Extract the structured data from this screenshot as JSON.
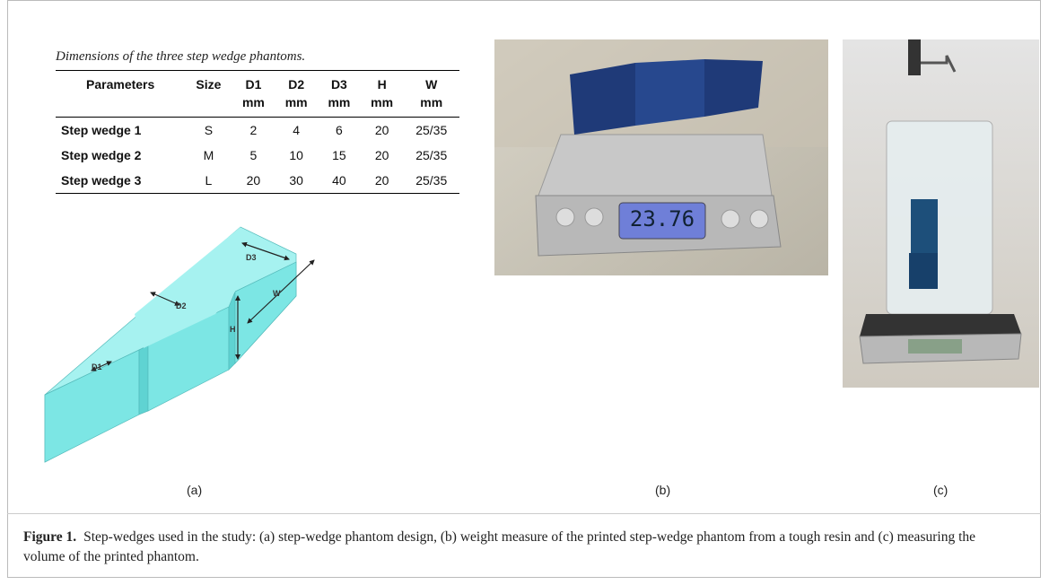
{
  "table": {
    "caption": "Dimensions of the three step wedge phantoms.",
    "header": [
      "Parameters",
      "Size",
      "D1",
      "D2",
      "D3",
      "H",
      "W"
    ],
    "units": [
      "mm",
      "mm",
      "mm",
      "mm",
      "mm"
    ],
    "rows": [
      [
        "Step wedge 1",
        "S",
        "2",
        "4",
        "6",
        "20",
        "25/35"
      ],
      [
        "Step wedge 2",
        "M",
        "5",
        "10",
        "15",
        "20",
        "25/35"
      ],
      [
        "Step wedge 3",
        "L",
        "20",
        "30",
        "40",
        "20",
        "25/35"
      ]
    ]
  },
  "diagram": {
    "labels": [
      "D1",
      "D2",
      "D3",
      "H",
      "W"
    ]
  },
  "photo_b": {
    "display": "23.76"
  },
  "panels": [
    "(a)",
    "(b)",
    "(c)"
  ],
  "caption": {
    "label": "Figure 1.",
    "text": "Step-wedges used in the study: (a) step-wedge phantom design, (b) weight measure of the printed step-wedge phantom from a tough resin and (c) measuring the volume of the printed phantom."
  }
}
